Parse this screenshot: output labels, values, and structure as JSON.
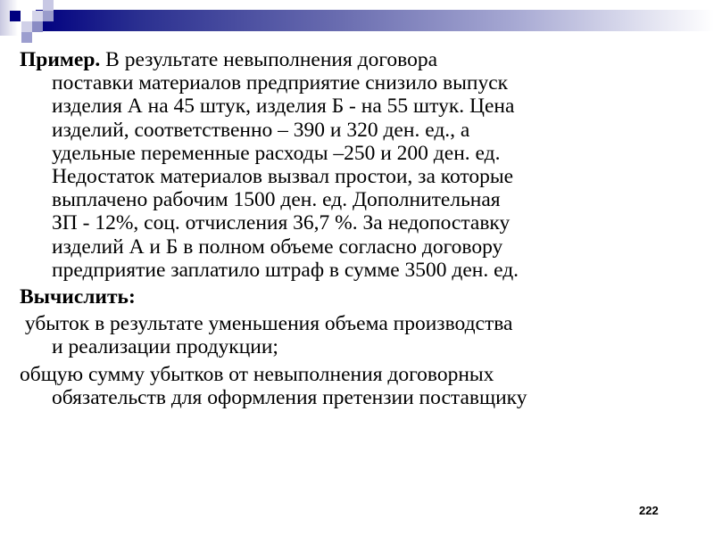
{
  "slide": {
    "example_label": "Пример.",
    "problem_lines": [
      "В результате невыполнения договора",
      "поставки  материалов предприятие снизило выпуск",
      "изделия А на 45 штук, изделия Б - на 55 штук. Цена",
      "изделий, соответственно – 390 и 320 ден. ед., а",
      "удельные переменные расходы –250 и 200 ден. ед.",
      "Недостаток материалов вызвал простои, за которые",
      "выплачено рабочим 1500 ден. ед. Дополнительная",
      "ЗП - 12%, соц. отчисления 36,7 %. За недопоставку",
      "изделий А и Б в полном объеме согласно договору",
      "предприятие заплатило штраф в сумме 3500 ден. ед."
    ],
    "task_label": "Вычислить:",
    "task1_lines": [
      " убыток в результате уменьшения объема производства",
      "и реализации продукции;"
    ],
    "task2_lines": [
      "общую сумму убытков от невыполнения договорных",
      "обязательств для оформления претензии поставщику"
    ],
    "page_number": "222"
  },
  "colors": {
    "accent": "#000080"
  }
}
